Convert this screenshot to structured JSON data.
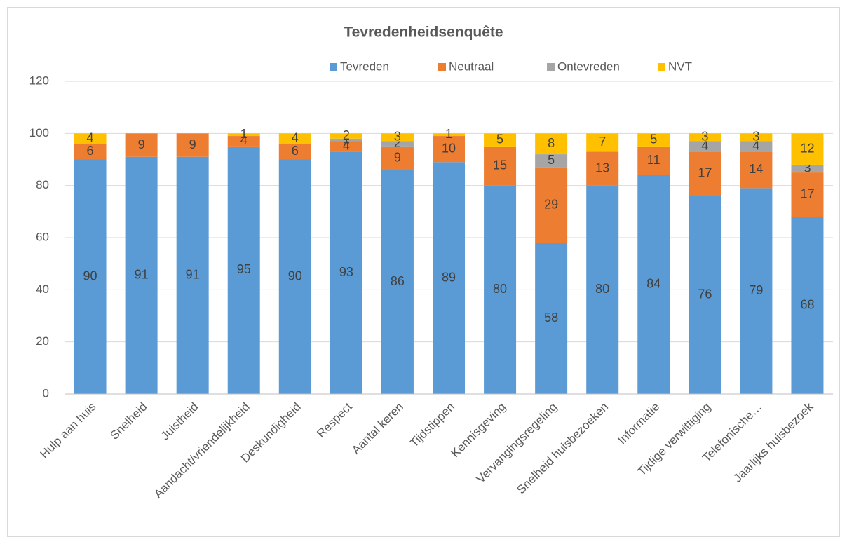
{
  "chart_data": {
    "type": "stacked_bar",
    "title": "Tevredenheidsenquête",
    "categories": [
      "Hulp aan huis",
      "Snelheid",
      "Juistheid",
      "Aandacht/vriendelijkheid",
      "Deskundigheid",
      "Respect",
      "Aantal keren",
      "Tijdstippen",
      "Kennisgeving",
      "Vervangingsregeling",
      "Snelheid huisbezoeken",
      "Informatie",
      "Tijdige verwittiging",
      "Telefonische…",
      "Jaarlijks huisbezoek"
    ],
    "series": [
      {
        "name": "Tevreden",
        "color": "#5b9bd5",
        "values": [
          90,
          91,
          91,
          95,
          90,
          93,
          86,
          89,
          80,
          58,
          80,
          84,
          76,
          79,
          68
        ]
      },
      {
        "name": "Neutraal",
        "color": "#ed7d31",
        "values": [
          6,
          9,
          9,
          4,
          6,
          4,
          9,
          10,
          15,
          29,
          13,
          11,
          17,
          14,
          17
        ]
      },
      {
        "name": "Ontevreden",
        "color": "#a5a5a5",
        "values": [
          null,
          null,
          null,
          null,
          null,
          1,
          2,
          null,
          null,
          5,
          null,
          null,
          4,
          4,
          3
        ]
      },
      {
        "name": "NVT",
        "color": "#ffc000",
        "values": [
          4,
          null,
          null,
          1,
          4,
          2,
          3,
          1,
          5,
          8,
          7,
          5,
          3,
          3,
          12
        ]
      }
    ],
    "ylim": [
      0,
      120
    ],
    "yticks": [
      0,
      20,
      40,
      60,
      80,
      100,
      120
    ],
    "grid": true,
    "legend": "top"
  }
}
